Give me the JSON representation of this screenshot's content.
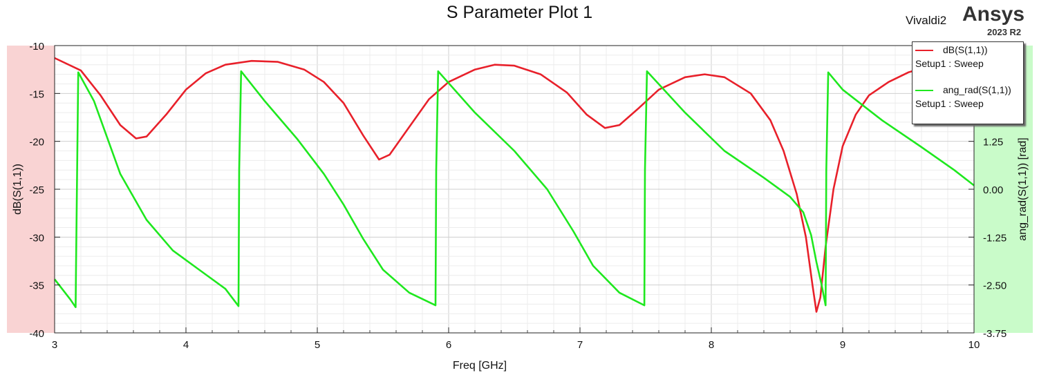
{
  "header": {
    "title": "S Parameter Plot 1",
    "project": "Vivaldi2",
    "brand": "Ansys",
    "version": "2023 R2"
  },
  "legend": {
    "entries": [
      {
        "name": "dB(S(1,1))",
        "sub": "Setup1 : Sweep",
        "color": "#e8202a"
      },
      {
        "name": "ang_rad(S(1,1))",
        "sub": "Setup1 : Sweep",
        "color": "#1ee81e"
      }
    ]
  },
  "colors": {
    "left_band": "#f9d3d3",
    "right_band": "#c9fbc9",
    "grid_major": "#cfcfcf",
    "grid_minor": "#ececec"
  },
  "chart_data": {
    "type": "line",
    "title": "S Parameter Plot 1",
    "xlabel": "Freq [GHz]",
    "ylabel_left": "dB(S(1,1))",
    "ylabel_right": "ang_rad(S(1,1)) [rad]",
    "xlim": [
      3,
      10
    ],
    "ylim_left": [
      -40,
      -10
    ],
    "ylim_right": [
      -3.75,
      3.75
    ],
    "x_ticks": [
      "3",
      "4",
      "5",
      "6",
      "7",
      "8",
      "9",
      "10"
    ],
    "y_ticks_left": [
      "-10",
      "-15",
      "-20",
      "-25",
      "-30",
      "-35",
      "-40"
    ],
    "y_ticks_right": [
      "1.25",
      "0.00",
      "-1.25",
      "-2.50",
      "-3.75"
    ],
    "grid": true,
    "legend_position": "top-right",
    "series": [
      {
        "name": "dB(S(1,1))",
        "axis": "left",
        "color": "#e8202a",
        "points": [
          [
            3.0,
            -11.3
          ],
          [
            3.2,
            -12.6
          ],
          [
            3.35,
            -15.2
          ],
          [
            3.5,
            -18.3
          ],
          [
            3.62,
            -19.7
          ],
          [
            3.7,
            -19.5
          ],
          [
            3.85,
            -17.2
          ],
          [
            4.0,
            -14.6
          ],
          [
            4.15,
            -12.9
          ],
          [
            4.3,
            -12.0
          ],
          [
            4.5,
            -11.6
          ],
          [
            4.7,
            -11.7
          ],
          [
            4.9,
            -12.5
          ],
          [
            5.05,
            -13.8
          ],
          [
            5.2,
            -16.0
          ],
          [
            5.35,
            -19.4
          ],
          [
            5.47,
            -21.9
          ],
          [
            5.55,
            -21.4
          ],
          [
            5.7,
            -18.5
          ],
          [
            5.85,
            -15.6
          ],
          [
            6.0,
            -13.8
          ],
          [
            6.2,
            -12.5
          ],
          [
            6.35,
            -12.0
          ],
          [
            6.5,
            -12.1
          ],
          [
            6.7,
            -13.0
          ],
          [
            6.9,
            -14.9
          ],
          [
            7.05,
            -17.2
          ],
          [
            7.19,
            -18.6
          ],
          [
            7.3,
            -18.3
          ],
          [
            7.45,
            -16.5
          ],
          [
            7.6,
            -14.6
          ],
          [
            7.8,
            -13.3
          ],
          [
            7.95,
            -13.0
          ],
          [
            8.1,
            -13.3
          ],
          [
            8.3,
            -15.0
          ],
          [
            8.45,
            -17.8
          ],
          [
            8.55,
            -21.0
          ],
          [
            8.65,
            -25.5
          ],
          [
            8.72,
            -30.0
          ],
          [
            8.77,
            -35.0
          ],
          [
            8.8,
            -37.8
          ],
          [
            8.83,
            -36.3
          ],
          [
            8.87,
            -31.0
          ],
          [
            8.93,
            -25.0
          ],
          [
            9.0,
            -20.5
          ],
          [
            9.1,
            -17.2
          ],
          [
            9.2,
            -15.2
          ],
          [
            9.35,
            -13.8
          ],
          [
            9.5,
            -12.8
          ],
          [
            9.6,
            -12.4
          ]
        ]
      },
      {
        "name": "ang_rad(S(1,1))",
        "axis": "right",
        "color": "#1ee81e",
        "points": [
          [
            3.0,
            -2.35
          ],
          [
            3.12,
            -2.88
          ],
          [
            3.16,
            -3.08
          ],
          [
            3.163,
            -2.0
          ],
          [
            3.18,
            3.05
          ],
          [
            3.3,
            2.3
          ],
          [
            3.5,
            0.4
          ],
          [
            3.7,
            -0.8
          ],
          [
            3.9,
            -1.6
          ],
          [
            4.1,
            -2.1
          ],
          [
            4.3,
            -2.6
          ],
          [
            4.4,
            -3.05
          ],
          [
            4.405,
            0.5
          ],
          [
            4.42,
            3.08
          ],
          [
            4.6,
            2.3
          ],
          [
            4.85,
            1.3
          ],
          [
            5.05,
            0.4
          ],
          [
            5.2,
            -0.4
          ],
          [
            5.35,
            -1.3
          ],
          [
            5.5,
            -2.1
          ],
          [
            5.7,
            -2.7
          ],
          [
            5.9,
            -3.03
          ],
          [
            5.905,
            0.5
          ],
          [
            5.92,
            3.08
          ],
          [
            6.2,
            2.0
          ],
          [
            6.5,
            1.0
          ],
          [
            6.75,
            0.0
          ],
          [
            6.95,
            -1.1
          ],
          [
            7.1,
            -2.0
          ],
          [
            7.3,
            -2.7
          ],
          [
            7.49,
            -3.03
          ],
          [
            7.495,
            0.5
          ],
          [
            7.51,
            3.08
          ],
          [
            7.8,
            2.0
          ],
          [
            8.1,
            1.0
          ],
          [
            8.4,
            0.3
          ],
          [
            8.6,
            -0.2
          ],
          [
            8.7,
            -0.6
          ],
          [
            8.76,
            -1.2
          ],
          [
            8.8,
            -1.9
          ],
          [
            8.84,
            -2.5
          ],
          [
            8.87,
            -3.03
          ],
          [
            8.875,
            0.5
          ],
          [
            8.89,
            3.05
          ],
          [
            9.0,
            2.6
          ],
          [
            9.3,
            1.8
          ],
          [
            9.6,
            1.1
          ],
          [
            9.85,
            0.5
          ],
          [
            10.0,
            0.1
          ]
        ]
      }
    ]
  }
}
